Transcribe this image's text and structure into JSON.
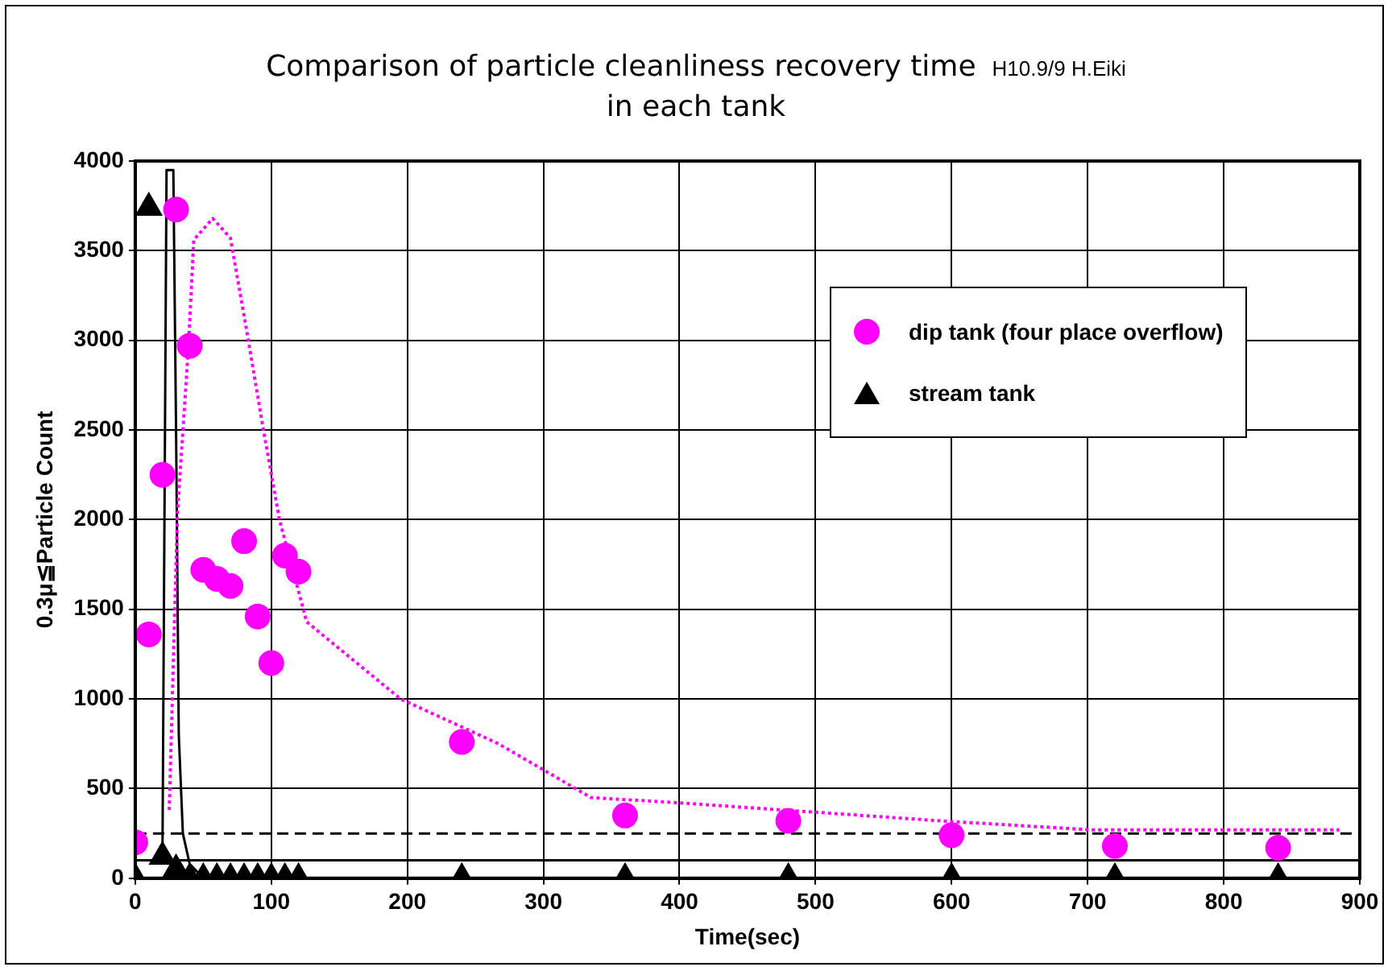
{
  "chart_data": {
    "type": "scatter",
    "title": "Comparison of particle cleanliness recovery time\nin each tank",
    "annotations": [
      "H10.9/9 H.Eiki"
    ],
    "xlabel": "Time(sec)",
    "ylabel": "0.3μ≦Particle Count",
    "xlim": [
      0,
      900
    ],
    "xticks": [
      0,
      100,
      200,
      300,
      400,
      500,
      600,
      700,
      800,
      900
    ],
    "ylim": [
      0,
      4000
    ],
    "yticks": [
      0,
      500,
      1000,
      1500,
      2000,
      2500,
      3000,
      3500,
      4000
    ],
    "grid": true,
    "legend": "top right",
    "series": [
      {
        "name": "dip tank (four place overflow)",
        "marker": "circle",
        "color": "#ff00ff",
        "x": [
          0,
          10,
          20,
          30,
          40,
          50,
          60,
          70,
          80,
          90,
          100,
          110,
          120,
          240,
          360,
          480,
          600,
          720,
          840
        ],
        "values": [
          200,
          1360,
          2250,
          3730,
          2970,
          1720,
          1670,
          1630,
          1880,
          1460,
          1200,
          1800,
          1710,
          760,
          350,
          320,
          240,
          180,
          170
        ]
      },
      {
        "name": "stream tank",
        "marker": "triangle",
        "color": "#000000",
        "x": [
          0,
          10,
          20,
          30,
          40,
          50,
          60,
          70,
          80,
          90,
          100,
          110,
          120,
          240,
          360,
          480,
          600,
          720,
          840
        ],
        "values": [
          0,
          3740,
          120,
          50,
          0,
          0,
          0,
          0,
          0,
          0,
          0,
          0,
          0,
          0,
          0,
          0,
          0,
          0,
          0
        ]
      },
      {
        "type": "line",
        "marker": "none",
        "line_style": "dotted",
        "color": "#ff00ff",
        "x": [
          25,
          31,
          39,
          43,
          57,
          70,
          82,
          94,
          106,
          126,
          195,
          267,
          335,
          401,
          592,
          703,
          885
        ],
        "values": [
          380,
          2030,
          2950,
          3560,
          3680,
          3570,
          3050,
          2510,
          2000,
          1430,
          1000,
          750,
          450,
          420,
          320,
          270,
          270
        ]
      },
      {
        "type": "line",
        "marker": "none",
        "line_style": "solid",
        "color": "#000000",
        "x": [
          20,
          23,
          24,
          28,
          30,
          32,
          35,
          40,
          45,
          50
        ],
        "values": [
          120,
          3950,
          3950,
          3950,
          2500,
          800,
          250,
          80,
          40,
          0
        ]
      }
    ],
    "ref_lines": [
      {
        "axis": "y",
        "value": 250,
        "line_style": "dashed",
        "color": "#000000"
      },
      {
        "axis": "y",
        "value": 100,
        "line_style": "solid",
        "color": "#000000"
      }
    ]
  }
}
